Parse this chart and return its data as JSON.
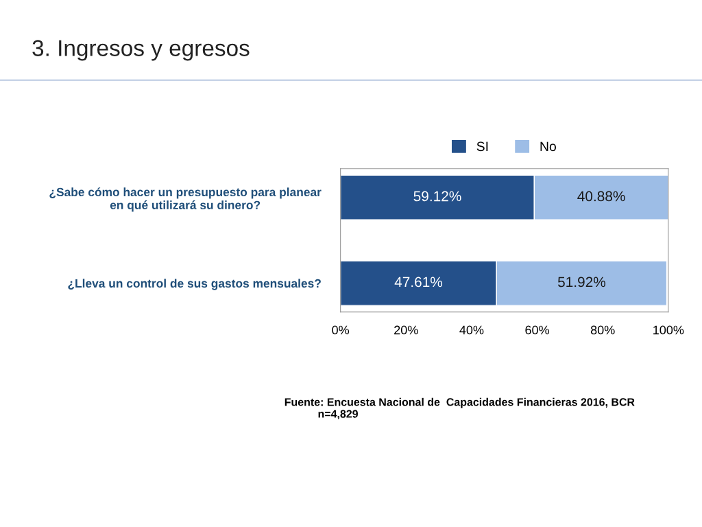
{
  "chart_data": {
    "type": "bar",
    "orientation": "horizontal",
    "stacked": true,
    "title": "3. Ingresos y egresos",
    "categories": [
      "¿Sabe cómo hacer un presupuesto para planear\nen qué utilizará su dinero?",
      "¿Lleva un control de sus gastos mensuales?"
    ],
    "series": [
      {
        "name": "SI",
        "color": "#24508a",
        "values": [
          59.12,
          47.61
        ],
        "value_labels": [
          "59.12%",
          "47.61%"
        ]
      },
      {
        "name": "No",
        "color": "#9dbde6",
        "values": [
          40.88,
          51.92
        ],
        "value_labels": [
          "40.88%",
          "51.92%"
        ]
      }
    ],
    "xlim": [
      0,
      100
    ],
    "xticks": [
      {
        "value": 0,
        "label": "0%"
      },
      {
        "value": 20,
        "label": "20%"
      },
      {
        "value": 40,
        "label": "40%"
      },
      {
        "value": 60,
        "label": "60%"
      },
      {
        "value": 80,
        "label": "80%"
      },
      {
        "value": 100,
        "label": "100%"
      }
    ],
    "legend": "top",
    "annotations": [
      "Fuente: Encuesta Nacional de  Capacidades Financieras 2016, BCR\n           n=4,829"
    ]
  }
}
